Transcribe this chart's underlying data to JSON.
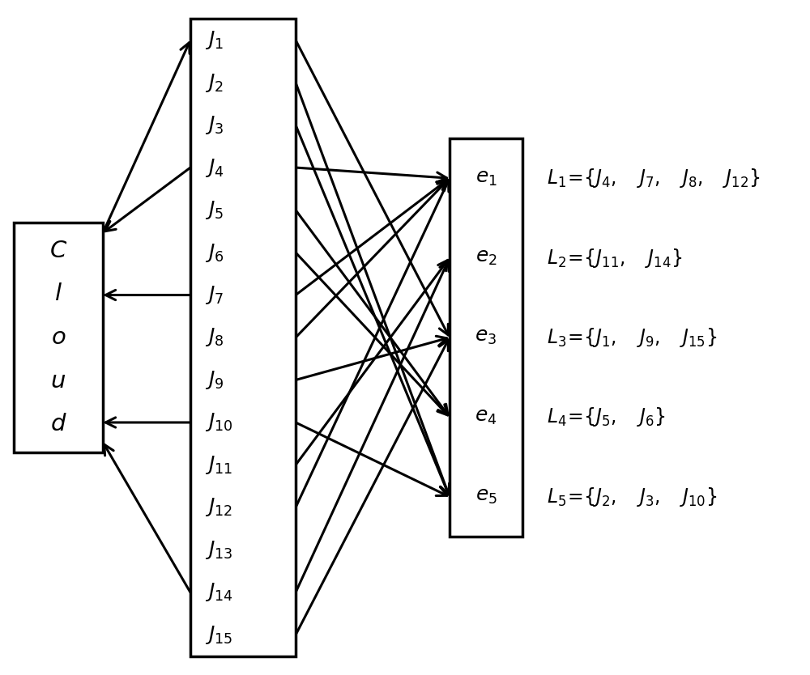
{
  "cloud_label": [
    "C",
    "l",
    "o",
    "u",
    "d"
  ],
  "j_tasks": [
    "J_1",
    "J_2",
    "J_3",
    "J_4",
    "J_5",
    "J_6",
    "J_7",
    "J_8",
    "J_9",
    "J_{10}",
    "J_{11}",
    "J_{12}",
    "J_{13}",
    "J_{14}",
    "J_{15}"
  ],
  "e_nodes": [
    "e_1",
    "e_2",
    "e_3",
    "e_4",
    "e_5"
  ],
  "assignments": {
    "e_1": [
      3,
      6,
      7,
      11
    ],
    "e_2": [
      10,
      13
    ],
    "e_3": [
      0,
      8,
      14
    ],
    "e_4": [
      4,
      5
    ],
    "e_5": [
      1,
      2,
      9
    ]
  },
  "cloud_to_j": [
    0
  ],
  "j_to_cloud": [
    3,
    6,
    9,
    13
  ],
  "figsize": [
    10,
    8.34
  ],
  "dpi": 100
}
